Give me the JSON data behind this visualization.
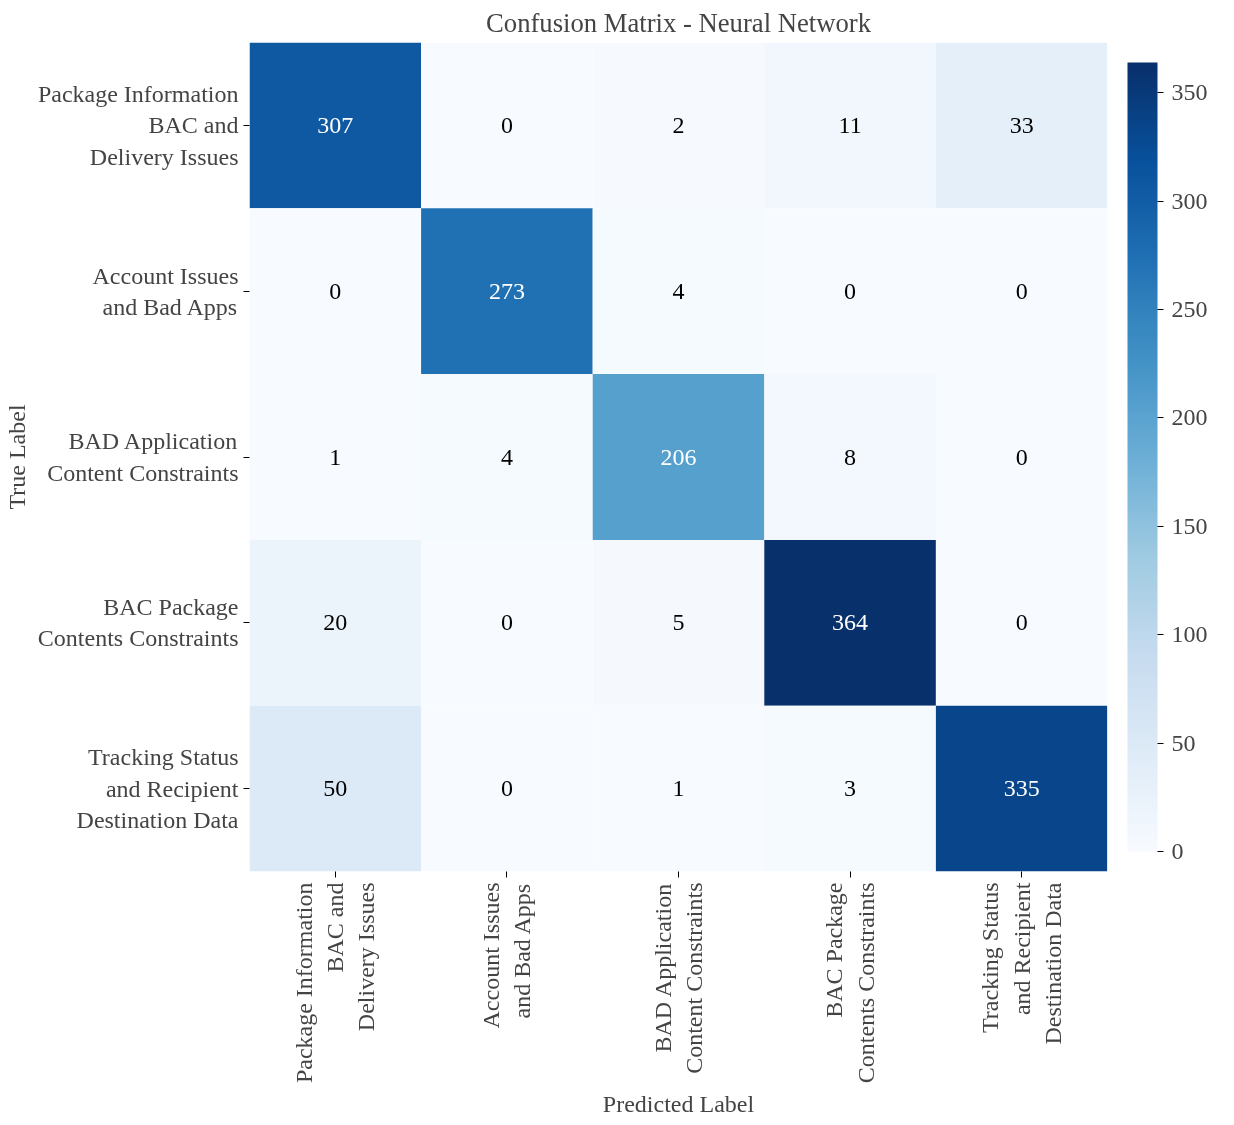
{
  "chart_data": {
    "type": "heatmap",
    "title": "Confusion Matrix - Neural Network",
    "xlabel": "Predicted Label",
    "ylabel": "True Label",
    "categories": [
      "Package Information\nBAC and\nDelivery Issues",
      "Account Issues\nand Bad Apps",
      "BAD Application\nContent Constraints",
      "BAC Package\nContents Constraints",
      "Tracking Status\nand Recipient\nDestination Data"
    ],
    "y_categories": [
      "Package Information\nBAC and\nDelivery Issues",
      "Account Issues\nand Bad Apps",
      "BAD Application\nContent Constraints",
      "BAC Package\nContents Constraints",
      "Tracking Status\nand Recipient\nDestination Data"
    ],
    "cells": [
      [
        307,
        0,
        2,
        11,
        33
      ],
      [
        0,
        273,
        4,
        0,
        0
      ],
      [
        1,
        4,
        206,
        8,
        0
      ],
      [
        20,
        0,
        5,
        364,
        0
      ],
      [
        50,
        0,
        1,
        3,
        335
      ]
    ],
    "data_labels": true,
    "clim": [
      0,
      364
    ],
    "cticks": [
      0,
      50,
      100,
      150,
      200,
      250,
      300,
      350
    ]
  }
}
